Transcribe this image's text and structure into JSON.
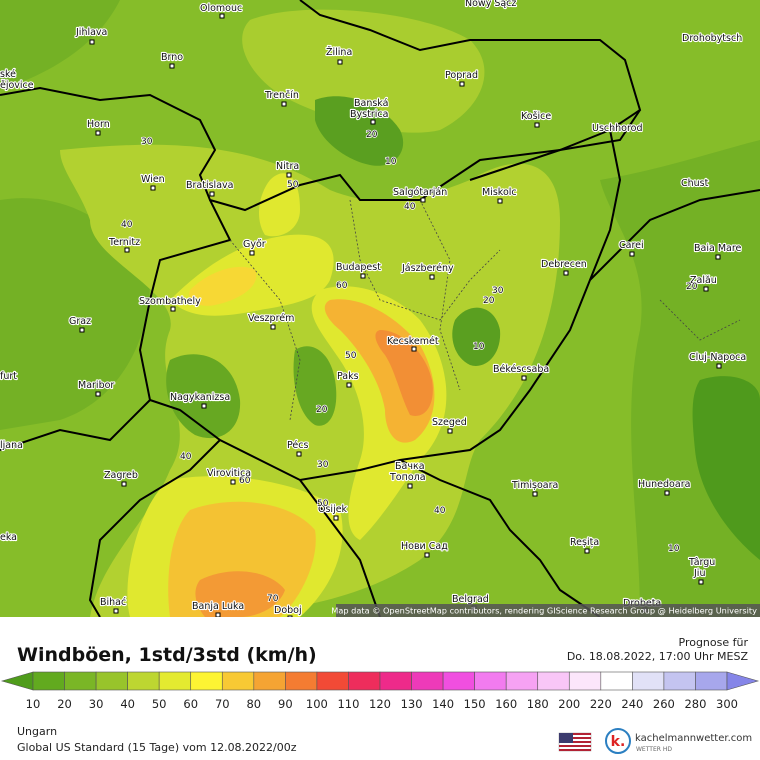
{
  "title": "Windböen, 1std/3std (km/h)",
  "forecast_label": "Prognose für",
  "forecast_time": "Do. 18.08.2022, 17:00 Uhr MESZ",
  "region": "Ungarn",
  "model_run": "Global US Standard (15 Tage)  vom  12.08.2022/00z",
  "brand": {
    "name": "kachelmannwetter.com",
    "tagline": "WETTER HD"
  },
  "map": {
    "attribution": "Map data © OpenStreetMap contributors, rendering GIScience Research Group @ Heidelberg University",
    "cities": [
      "Olomouc",
      "Nowy Sącz",
      "Jihlava",
      "Brno",
      "Žilina",
      "Drohobytsch",
      "Poprad",
      "ské",
      "ějovice",
      "Trenčín",
      "Banská",
      "Bystrica",
      "Košice",
      "Horn",
      "Uschhorod",
      "Wien",
      "Bratislava",
      "Nitra",
      "Salgótarján",
      "Miskolc",
      "Chust",
      "Ternitz",
      "Győr",
      "Carei",
      "Baia Mare",
      "Budapest",
      "Jászberény",
      "Debrecen",
      "Szombathely",
      "Zalău",
      "Graz",
      "Veszprém",
      "Kecskemét",
      "Cluj-Napoca",
      "Paks",
      "Békéscsaba",
      "furt",
      "Maribor",
      "Nagykanizsa",
      "Szeged",
      "ljana",
      "Pécs",
      "Бачка",
      "Топола",
      "Zagreb",
      "Virovitica",
      "Timișoara",
      "Hunedoara",
      "Osijek",
      "Нови Сад",
      "Reșița",
      "eka",
      "Târgu",
      "Jiu",
      "Bihać",
      "Banja Luka",
      "Doboj",
      "Belgrad",
      "Drobeta"
    ],
    "contour_labels": [
      "30",
      "40",
      "50",
      "20",
      "10",
      "40",
      "20",
      "30",
      "10",
      "20",
      "60",
      "50",
      "20",
      "30",
      "40",
      "60",
      "50",
      "40",
      "10",
      "70"
    ]
  },
  "legend": {
    "ticks": [
      10,
      20,
      30,
      40,
      50,
      60,
      70,
      80,
      90,
      100,
      110,
      120,
      130,
      140,
      150,
      160,
      180,
      200,
      220,
      240,
      260,
      280,
      300
    ],
    "colors": [
      "#4f9c1b",
      "#62aa1f",
      "#7ab626",
      "#98c42b",
      "#bdd631",
      "#e4ea30",
      "#fdf433",
      "#f8c934",
      "#f5a433",
      "#f47c32",
      "#f24a36",
      "#ee2d5c",
      "#ee2a8a",
      "#ee3ab9",
      "#f04fe0",
      "#f27bef",
      "#f6a2f3",
      "#f9c6f7",
      "#fce6fb",
      "#ffffff",
      "#e1e1f7",
      "#c4c4f0",
      "#a7a7ec",
      "#8585e8"
    ]
  }
}
